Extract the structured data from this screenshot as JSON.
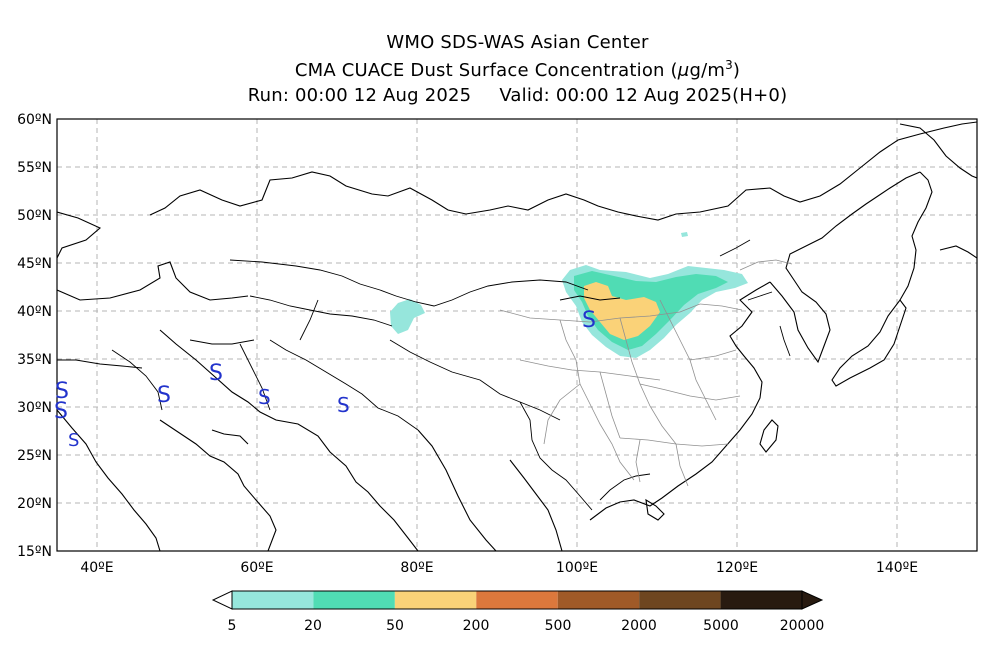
{
  "header": {
    "line1": "WMO SDS-WAS Asian Center",
    "line2_prefix": "CMA CUACE Dust Surface Concentration (",
    "line2_unit_mu": "μ",
    "line2_unit_g": "g/m",
    "line2_unit_exp": "3",
    "line2_suffix": ")",
    "run": "Run: 00:00 12 Aug 2025",
    "valid": "Valid: 00:00 12 Aug 2025(H+0)"
  },
  "map": {
    "lon_range": [
      35,
      150
    ],
    "lat_range": [
      15,
      60
    ],
    "lat_ticks": [
      "60ºN",
      "55ºN",
      "50ºN",
      "45ºN",
      "40ºN",
      "35ºN",
      "30ºN",
      "25ºN",
      "20ºN",
      "15ºN"
    ],
    "lon_ticks": [
      "40ºE",
      "60ºE",
      "80ºE",
      "100ºE",
      "120ºE",
      "140ºE"
    ],
    "grid": true,
    "grid_color": "#b4b4b4",
    "station_symbol": "S",
    "station_color": "#2233cc"
  },
  "colorbar": {
    "labels": [
      "5",
      "20",
      "50",
      "200",
      "500",
      "2000",
      "5000",
      "20000"
    ],
    "colors": [
      "#96e6dc",
      "#50dcb4",
      "#fad278",
      "#dc783c",
      "#a05a28",
      "#6e4620",
      "#281a10"
    ]
  }
}
